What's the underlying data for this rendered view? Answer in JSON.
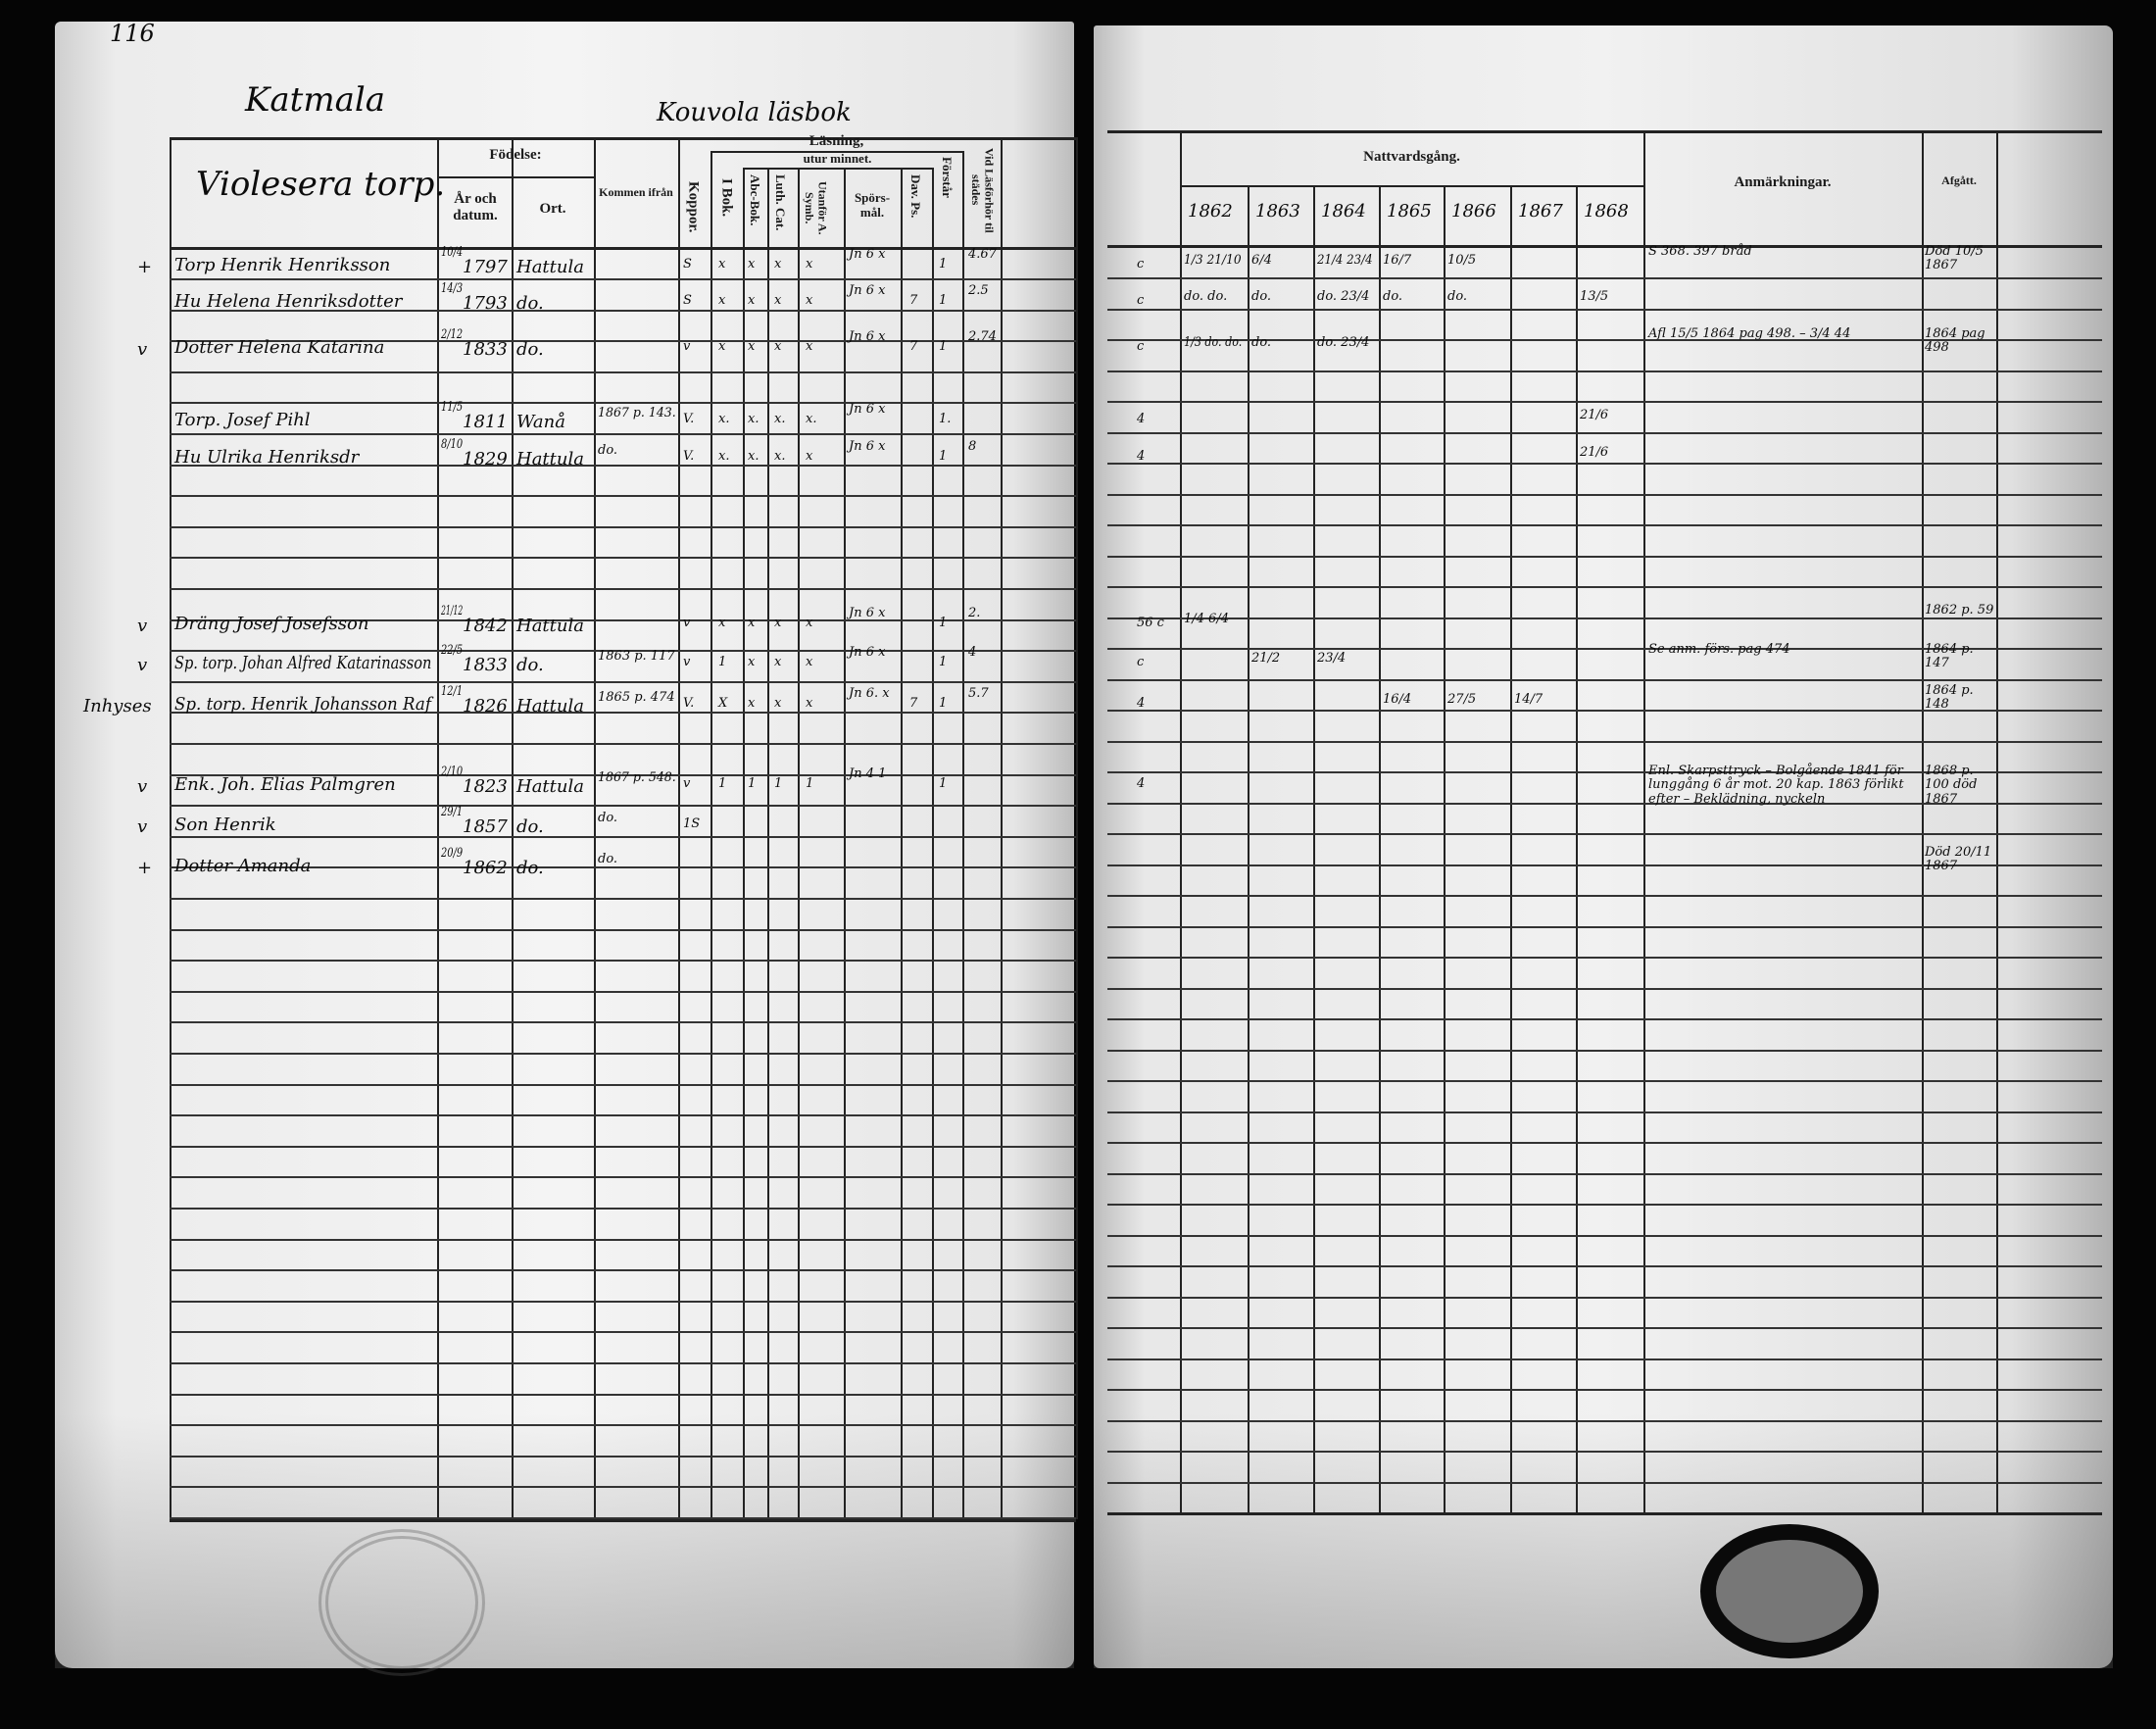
{
  "left_page": {
    "page_number": "116",
    "parish": "Katmala",
    "village": "Kouvola läsbok",
    "farm": "Violesera torp.",
    "headers": {
      "fodelse": "Födelse:",
      "ar_datum": "År och datum.",
      "ort": "Ort.",
      "kommen_fran": "Kommen ifrån",
      "kopper": "Koppor.",
      "lasning": "Läsning,",
      "utur_minnet": "utur minnet.",
      "bok1": "I Bok.",
      "abc": "Abc-Bok.",
      "luth": "Luth. Cat.",
      "utan": "Utanför A. Symb.",
      "spors": "Spörs-mål.",
      "dav": "Dav. Ps.",
      "forst": "Förstår",
      "vid": "Vid Läsförhör til städes"
    },
    "rows": [
      {
        "mark": "+",
        "name": "Torp Henrik Henriksson",
        "date": "10/4",
        "year": "1797",
        "place": "Hattula",
        "from": "",
        "kopp": "S",
        "bok1": "x",
        "abc": "x",
        "luth": "x",
        "utan": "x",
        "spors": "Jn 6 x",
        "dav": "",
        "forst": "1",
        "vid": "4.67"
      },
      {
        "mark": "",
        "name": "Hu Helena Henriksdotter",
        "date": "14/3",
        "year": "1793",
        "place": "do.",
        "from": "",
        "kopp": "S",
        "bok1": "x",
        "abc": "x",
        "luth": "x",
        "utan": "x",
        "spors": "Jn 6 x",
        "dav": "7",
        "forst": "1",
        "vid": "2.5"
      },
      {
        "mark": "v",
        "name": "Dotter Helena Katarina",
        "date": "2/12",
        "year": "1833",
        "place": "do.",
        "from": "",
        "kopp": "v",
        "bok1": "x",
        "abc": "x",
        "luth": "x",
        "utan": "x",
        "spors": "Jn 6 x",
        "dav": "7",
        "forst": "1",
        "vid": "2.74"
      },
      {
        "mark": "",
        "name": "Torp. Josef Pihl",
        "date": "11/5",
        "year": "1811",
        "place": "Wanå",
        "from": "1867 p. 143.",
        "kopp": "V.",
        "bok1": "x.",
        "abc": "x.",
        "luth": "x.",
        "utan": "x.",
        "spors": "Jn 6 x",
        "dav": "",
        "forst": "1.",
        "vid": ""
      },
      {
        "mark": "",
        "name": "Hu Ulrika Henriksdr",
        "date": "8/10",
        "year": "1829",
        "place": "Hattula",
        "from": "do.",
        "kopp": "V.",
        "bok1": "x.",
        "abc": "x.",
        "luth": "x.",
        "utan": "x",
        "spors": "Jn 6 x",
        "dav": "",
        "forst": "1",
        "vid": "8"
      },
      {
        "mark": "v",
        "name": "Dräng Josef Josefsson",
        "date": "21/12",
        "year": "1842",
        "place": "Hattula",
        "from": "",
        "kopp": "v",
        "bok1": "x",
        "abc": "x",
        "luth": "x",
        "utan": "x",
        "spors": "Jn 6 x",
        "dav": "",
        "forst": "1",
        "vid": "2."
      },
      {
        "mark": "v",
        "name": "Sp. torp. Johan Alfred Katarinasson",
        "date": "22/5",
        "year": "1833",
        "place": "do.",
        "from": "1863 p. 117",
        "kopp": "v",
        "bok1": "1",
        "abc": "x",
        "luth": "x",
        "utan": "x",
        "spors": "Jn 6 x",
        "dav": "",
        "forst": "1",
        "vid": "4"
      },
      {
        "mark": "Inhyses",
        "name": "Sp. torp. Henrik Johansson Raf",
        "date": "12/1",
        "year": "1826",
        "place": "Hattula",
        "from": "1865 p. 474",
        "kopp": "V.",
        "bok1": "X",
        "abc": "x",
        "luth": "x",
        "utan": "x",
        "spors": "Jn 6. x",
        "dav": "7",
        "forst": "1",
        "vid": "5.7"
      },
      {
        "mark": "v",
        "name": "Enk. Joh. Elias Palmgren",
        "date": "2/10",
        "year": "1823",
        "place": "Hattula",
        "from": "1867 p. 548.",
        "kopp": "v",
        "bok1": "1",
        "abc": "1",
        "luth": "1",
        "utan": "1",
        "spors": "Jn 4 1",
        "dav": "",
        "forst": "1",
        "vid": ""
      },
      {
        "mark": "v",
        "name": "Son Henrik",
        "date": "29/1",
        "year": "1857",
        "place": "do.",
        "from": "do.",
        "kopp": "1S",
        "bok1": "",
        "abc": "",
        "luth": "",
        "utan": "",
        "spors": "",
        "dav": "",
        "forst": "",
        "vid": ""
      },
      {
        "mark": "+",
        "name": "Dotter Amanda",
        "date": "20/9",
        "year": "1862",
        "place": "do.",
        "from": "do.",
        "kopp": "",
        "bok1": "",
        "abc": "",
        "luth": "",
        "utan": "",
        "spors": "",
        "dav": "",
        "forst": "",
        "vid": ""
      }
    ]
  },
  "right_page": {
    "headers": {
      "nattvard": "Nattvardsgång.",
      "anm": "Anmärkningar.",
      "afgatt": "Afgått."
    },
    "years": [
      "1862",
      "1863",
      "1864",
      "1865",
      "1866",
      "1867",
      "1868"
    ],
    "rows": [
      {
        "pre": "c",
        "y": [
          "1/3 21/10",
          "6/4",
          "21/4 23/4",
          "16/7",
          "10/5",
          "",
          ""
        ],
        "anm": "S 368. 397 bråd",
        "afg": "Död 10/5 1867"
      },
      {
        "pre": "c",
        "y": [
          "do. do.",
          "do.",
          "do. 23/4",
          "do.",
          "do.",
          "",
          "13/5"
        ],
        "anm": "",
        "afg": ""
      },
      {
        "pre": "c",
        "y": [
          "1/3 do. do.",
          "do.",
          "do. 23/4",
          "",
          "",
          "",
          ""
        ],
        "anm": "Afl 15/5 1864 pag 498. – 3/4 44",
        "afg": "1864 pag 498"
      },
      {
        "pre": "4",
        "y": [
          "",
          "",
          "",
          "",
          "",
          "",
          "21/6"
        ],
        "anm": "",
        "afg": ""
      },
      {
        "pre": "4",
        "y": [
          "",
          "",
          "",
          "",
          "",
          "",
          "21/6"
        ],
        "anm": "",
        "afg": ""
      },
      {
        "pre": "56 c",
        "y": [
          "1/4 6/4",
          "",
          "",
          "",
          "",
          "",
          ""
        ],
        "anm": "",
        "afg": "1862 p. 59"
      },
      {
        "pre": "c",
        "y": [
          "",
          "21/2",
          "23/4",
          "",
          "",
          "",
          ""
        ],
        "anm": "Se anm. förs. pag 474",
        "afg": "1864 p. 147"
      },
      {
        "pre": "4",
        "y": [
          "",
          "",
          "",
          "16/4",
          "27/5",
          "14/7",
          ""
        ],
        "anm": "",
        "afg": "1864 p. 148"
      },
      {
        "pre": "4",
        "y": [
          "",
          "",
          "",
          "",
          "",
          "",
          ""
        ],
        "anm": "Enl. Skarpsttryck – Bolgående 1841 för lunggång 6 år mot. 20 kap. 1863 förlikt efter – Beklädning, nyckeln",
        "afg": "1868 p. 100 död 1867"
      },
      {
        "pre": "",
        "y": [
          "",
          "",
          "",
          "",
          "",
          "",
          ""
        ],
        "anm": "",
        "afg": ""
      },
      {
        "pre": "",
        "y": [
          "",
          "",
          "",
          "",
          "",
          "",
          ""
        ],
        "anm": "",
        "afg": "Död 20/11 1867"
      }
    ]
  }
}
